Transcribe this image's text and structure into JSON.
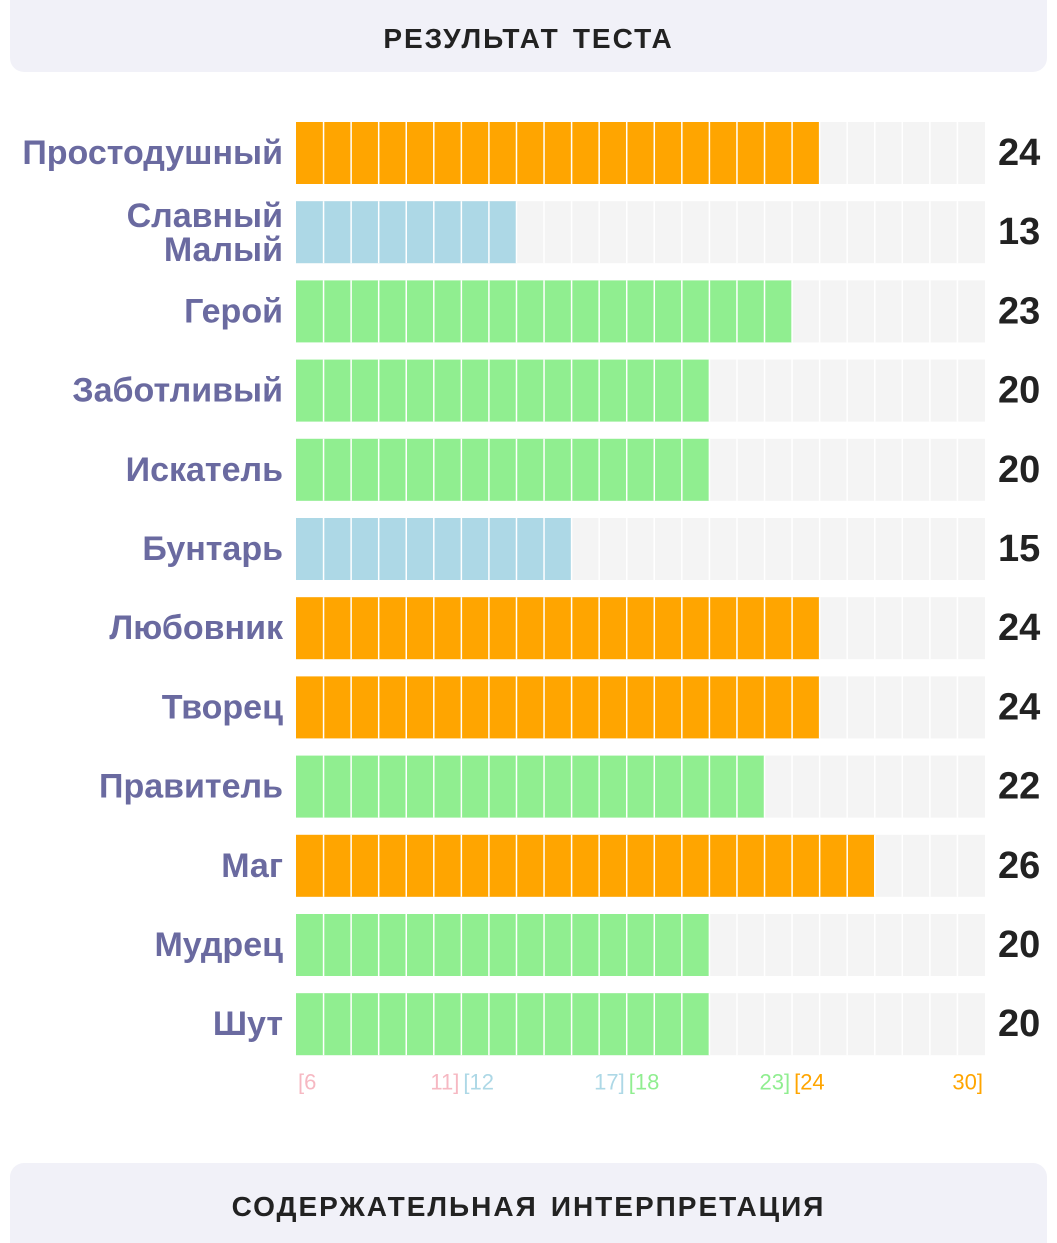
{
  "header": {
    "title": "Результат теста"
  },
  "footer": {
    "title": "Содержательная интерпретация"
  },
  "colors": {
    "low": "#f6b8c2",
    "below_average": "#add8e6",
    "average": "#90ee90",
    "high": "#ffa500",
    "empty": "#f4f4f4",
    "label": "#6a6aa0",
    "value": "#222222"
  },
  "chart_data": {
    "type": "bar",
    "orientation": "horizontal",
    "categories": [
      "Простодушный",
      "Славный Малый",
      "Герой",
      "Заботливый",
      "Искатель",
      "Бунтарь",
      "Любовник",
      "Творец",
      "Правитель",
      "Маг",
      "Мудрец",
      "Шут"
    ],
    "values": [
      24,
      13,
      23,
      20,
      20,
      15,
      24,
      24,
      22,
      26,
      20,
      20
    ],
    "value_labels": [
      "24",
      "13",
      "23",
      "20",
      "20",
      "15",
      "24",
      "24",
      "22",
      "26",
      "20",
      "20"
    ],
    "xlim": [
      6,
      30
    ],
    "bands": [
      {
        "from": 6,
        "to": 11,
        "color": "#f6b8c2",
        "start_label": "[6",
        "end_label": "11]"
      },
      {
        "from": 12,
        "to": 17,
        "color": "#add8e6",
        "start_label": "[12",
        "end_label": "17]"
      },
      {
        "from": 18,
        "to": 23,
        "color": "#90ee90",
        "start_label": "[18",
        "end_label": "23]"
      },
      {
        "from": 24,
        "to": 30,
        "color": "#ffa500",
        "start_label": "[24",
        "end_label": "30]"
      }
    ]
  }
}
